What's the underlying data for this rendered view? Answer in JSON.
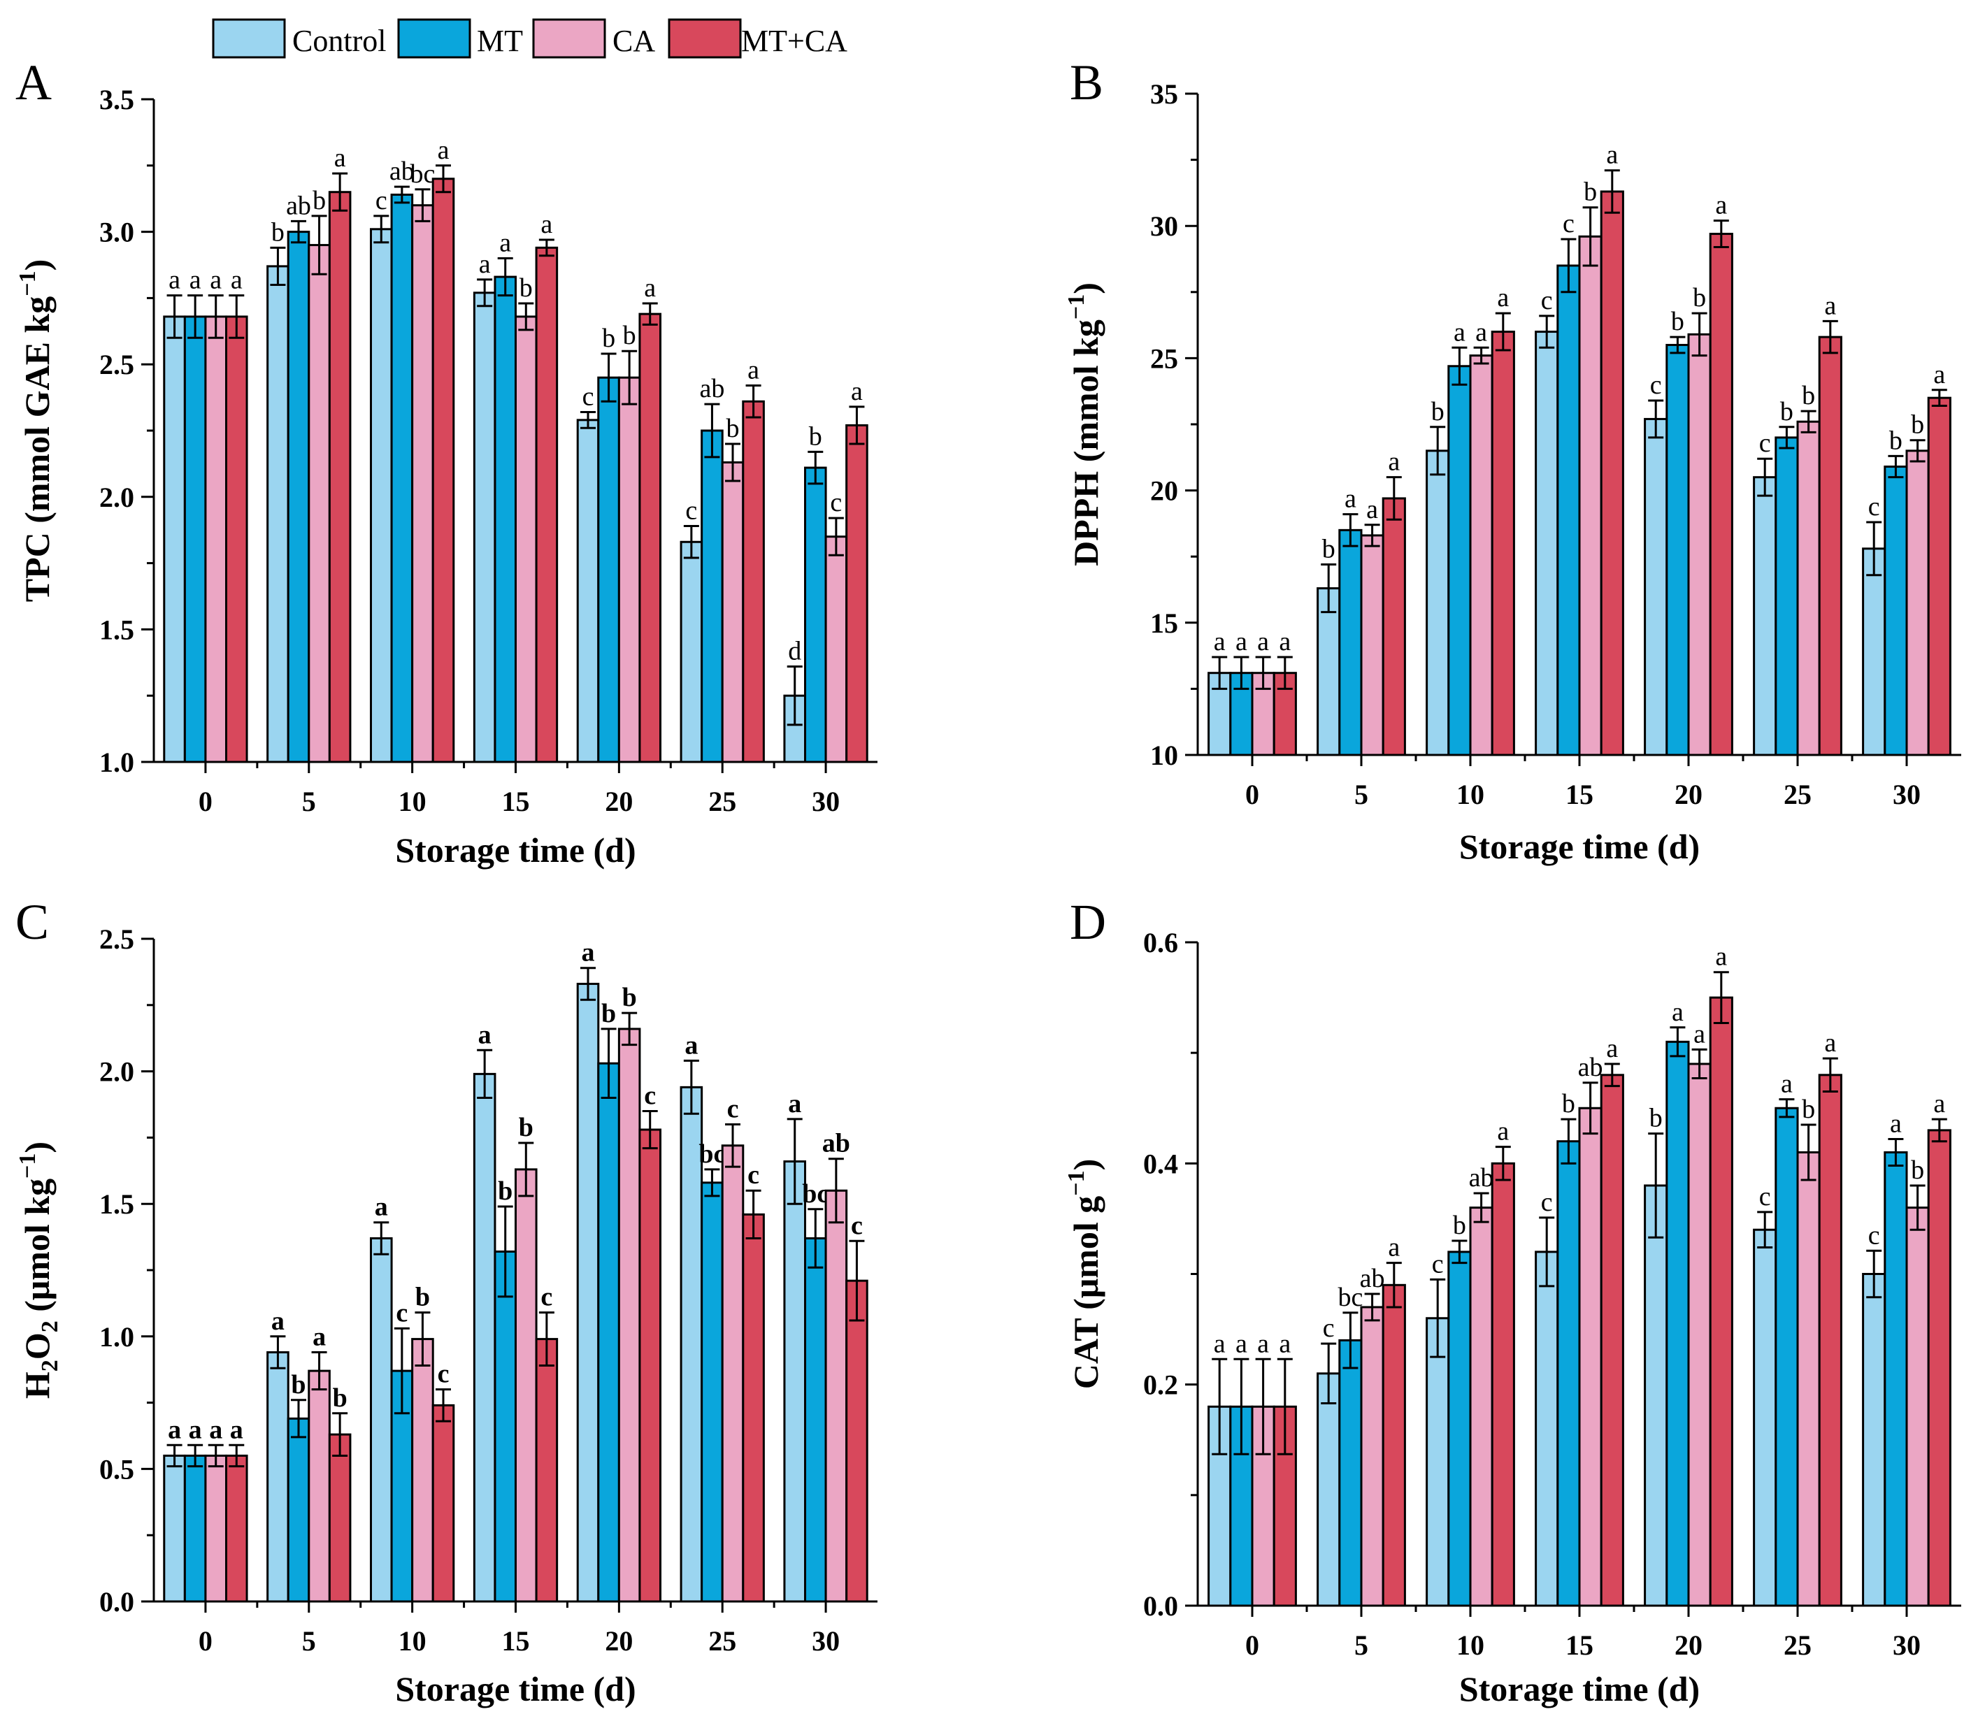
{
  "legend": [
    {
      "name": "Control",
      "color": "#9bd5f0"
    },
    {
      "name": "MT",
      "color": "#0aa6dc"
    },
    {
      "name": "CA",
      "color": "#eba6c4"
    },
    {
      "name": "MT+CA",
      "color": "#d8485c"
    }
  ],
  "chart_data": [
    {
      "type": "bar",
      "panel": "A",
      "ylabel": "TPC (mmol GAE kg",
      "ylabel_sup": "−1",
      "ylabel_end": ")",
      "xlabel": "Storage time (d)",
      "ylim": [
        1.0,
        3.5
      ],
      "yticks": [
        "1.0",
        "1.5",
        "2.0",
        "2.5",
        "3.0",
        "3.5"
      ],
      "categories": [
        "0",
        "5",
        "10",
        "15",
        "20",
        "25",
        "30"
      ],
      "bold_letters": false,
      "series": [
        {
          "name": "Control",
          "values": [
            2.68,
            2.87,
            3.01,
            2.77,
            2.29,
            1.83,
            1.25
          ],
          "errors": [
            0.08,
            0.07,
            0.05,
            0.05,
            0.03,
            0.06,
            0.11
          ],
          "letters": [
            "a",
            "b",
            "c",
            "a",
            "c",
            "c",
            "d"
          ]
        },
        {
          "name": "MT",
          "values": [
            2.68,
            3.0,
            3.14,
            2.83,
            2.45,
            2.25,
            2.11
          ],
          "errors": [
            0.08,
            0.04,
            0.03,
            0.07,
            0.09,
            0.1,
            0.06
          ],
          "letters": [
            "a",
            "ab",
            "ab",
            "a",
            "b",
            "ab",
            "b"
          ]
        },
        {
          "name": "CA",
          "values": [
            2.68,
            2.95,
            3.1,
            2.68,
            2.45,
            2.13,
            1.85
          ],
          "errors": [
            0.08,
            0.11,
            0.06,
            0.05,
            0.1,
            0.07,
            0.07
          ],
          "letters": [
            "a",
            "b",
            "bc",
            "b",
            "b",
            "b",
            "c"
          ]
        },
        {
          "name": "MT+CA",
          "values": [
            2.68,
            3.15,
            3.2,
            2.94,
            2.69,
            2.36,
            2.27
          ],
          "errors": [
            0.08,
            0.07,
            0.05,
            0.03,
            0.04,
            0.06,
            0.07
          ],
          "letters": [
            "a",
            "a",
            "a",
            "a",
            "a",
            "a",
            "a"
          ]
        }
      ]
    },
    {
      "type": "bar",
      "panel": "B",
      "ylabel": "DPPH (mmol kg",
      "ylabel_sup": "−1",
      "ylabel_end": ")",
      "xlabel": "Storage time (d)",
      "ylim": [
        10,
        35
      ],
      "yticks": [
        "10",
        "15",
        "20",
        "25",
        "30",
        "35"
      ],
      "categories": [
        "0",
        "5",
        "10",
        "15",
        "20",
        "25",
        "30"
      ],
      "bold_letters": false,
      "series": [
        {
          "name": "Control",
          "values": [
            13.1,
            16.3,
            21.5,
            26.0,
            22.7,
            20.5,
            17.8
          ],
          "errors": [
            0.6,
            0.9,
            0.9,
            0.6,
            0.7,
            0.7,
            1.0
          ],
          "letters": [
            "a",
            "b",
            "b",
            "c",
            "c",
            "c",
            "c"
          ]
        },
        {
          "name": "MT",
          "values": [
            13.1,
            18.5,
            24.7,
            28.5,
            25.5,
            22.0,
            20.9
          ],
          "errors": [
            0.6,
            0.6,
            0.7,
            1.0,
            0.3,
            0.4,
            0.4
          ],
          "letters": [
            "a",
            "a",
            "a",
            "c",
            "b",
            "b",
            "b"
          ]
        },
        {
          "name": "CA",
          "values": [
            13.1,
            18.3,
            25.1,
            29.6,
            25.9,
            22.6,
            21.5
          ],
          "errors": [
            0.6,
            0.4,
            0.3,
            1.1,
            0.8,
            0.4,
            0.4
          ],
          "letters": [
            "a",
            "a",
            "a",
            "b",
            "b",
            "b",
            "b"
          ]
        },
        {
          "name": "MT+CA",
          "values": [
            13.1,
            19.7,
            26.0,
            31.3,
            29.7,
            25.8,
            23.5
          ],
          "errors": [
            0.6,
            0.8,
            0.7,
            0.8,
            0.5,
            0.6,
            0.3
          ],
          "letters": [
            "a",
            "a",
            "a",
            "a",
            "a",
            "a",
            "a"
          ]
        }
      ]
    },
    {
      "type": "bar",
      "panel": "C",
      "ylabel": "H",
      "ylabel_sub": "2",
      "ylabel_mid": "O",
      "ylabel_sub2": "2",
      "ylabel_rest": " (μmol kg",
      "ylabel_sup": "−1",
      "ylabel_end": ")",
      "xlabel": "Storage time (d)",
      "ylim": [
        0.0,
        2.5
      ],
      "yticks": [
        "0.0",
        "0.5",
        "1.0",
        "1.5",
        "2.0",
        "2.5"
      ],
      "categories": [
        "0",
        "5",
        "10",
        "15",
        "20",
        "25",
        "30"
      ],
      "bold_letters": true,
      "series": [
        {
          "name": "Control",
          "values": [
            0.55,
            0.94,
            1.37,
            1.99,
            2.33,
            1.94,
            1.66
          ],
          "errors": [
            0.04,
            0.06,
            0.06,
            0.09,
            0.06,
            0.1,
            0.16
          ],
          "letters": [
            "a",
            "a",
            "a",
            "a",
            "a",
            "a",
            "a"
          ]
        },
        {
          "name": "MT",
          "values": [
            0.55,
            0.69,
            0.87,
            1.32,
            2.03,
            1.58,
            1.37
          ],
          "errors": [
            0.04,
            0.07,
            0.16,
            0.17,
            0.13,
            0.05,
            0.11
          ],
          "letters": [
            "a",
            "b",
            "c",
            "b",
            "b",
            "bc",
            "bc"
          ]
        },
        {
          "name": "CA",
          "values": [
            0.55,
            0.87,
            0.99,
            1.63,
            2.16,
            1.72,
            1.55
          ],
          "errors": [
            0.04,
            0.07,
            0.1,
            0.1,
            0.06,
            0.08,
            0.12
          ],
          "letters": [
            "a",
            "a",
            "b",
            "b",
            "b",
            "c",
            "ab"
          ]
        },
        {
          "name": "MT+CA",
          "values": [
            0.55,
            0.63,
            0.74,
            0.99,
            1.78,
            1.46,
            1.21
          ],
          "errors": [
            0.04,
            0.08,
            0.06,
            0.1,
            0.07,
            0.09,
            0.15
          ],
          "letters": [
            "a",
            "b",
            "c",
            "c",
            "c",
            "c",
            "c"
          ]
        }
      ]
    },
    {
      "type": "bar",
      "panel": "D",
      "ylabel": "CAT (μmol g",
      "ylabel_sup": "−1",
      "ylabel_end": ")",
      "xlabel": "Storage time (d)",
      "ylim": [
        0.0,
        0.6
      ],
      "yticks": [
        "0.0",
        "0.2",
        "0.4",
        "0.6"
      ],
      "yticks_values": [
        0.0,
        0.2,
        0.4,
        0.6
      ],
      "minor_step": 0.1,
      "categories": [
        "0",
        "5",
        "10",
        "15",
        "20",
        "25",
        "30"
      ],
      "bold_letters": false,
      "series": [
        {
          "name": "Control",
          "values": [
            0.18,
            0.21,
            0.26,
            0.32,
            0.38,
            0.34,
            0.3
          ],
          "errors": [
            0.043,
            0.027,
            0.035,
            0.031,
            0.047,
            0.016,
            0.021
          ],
          "letters": [
            "a",
            "c",
            "c",
            "c",
            "b",
            "c",
            "c"
          ]
        },
        {
          "name": "MT",
          "values": [
            0.18,
            0.24,
            0.32,
            0.42,
            0.51,
            0.45,
            0.41
          ],
          "errors": [
            0.043,
            0.025,
            0.01,
            0.02,
            0.013,
            0.008,
            0.012
          ],
          "letters": [
            "a",
            "bc",
            "b",
            "b",
            "a",
            "a",
            "a"
          ]
        },
        {
          "name": "CA",
          "values": [
            0.18,
            0.27,
            0.36,
            0.45,
            0.49,
            0.41,
            0.36
          ],
          "errors": [
            0.043,
            0.012,
            0.013,
            0.023,
            0.013,
            0.025,
            0.02
          ],
          "letters": [
            "a",
            "ab",
            "ab",
            "ab",
            "a",
            "b",
            "b"
          ]
        },
        {
          "name": "MT+CA",
          "values": [
            0.18,
            0.29,
            0.4,
            0.48,
            0.55,
            0.48,
            0.43
          ],
          "errors": [
            0.043,
            0.02,
            0.015,
            0.01,
            0.023,
            0.015,
            0.01
          ],
          "letters": [
            "a",
            "a",
            "a",
            "a",
            "a",
            "a",
            "a"
          ]
        }
      ]
    }
  ]
}
